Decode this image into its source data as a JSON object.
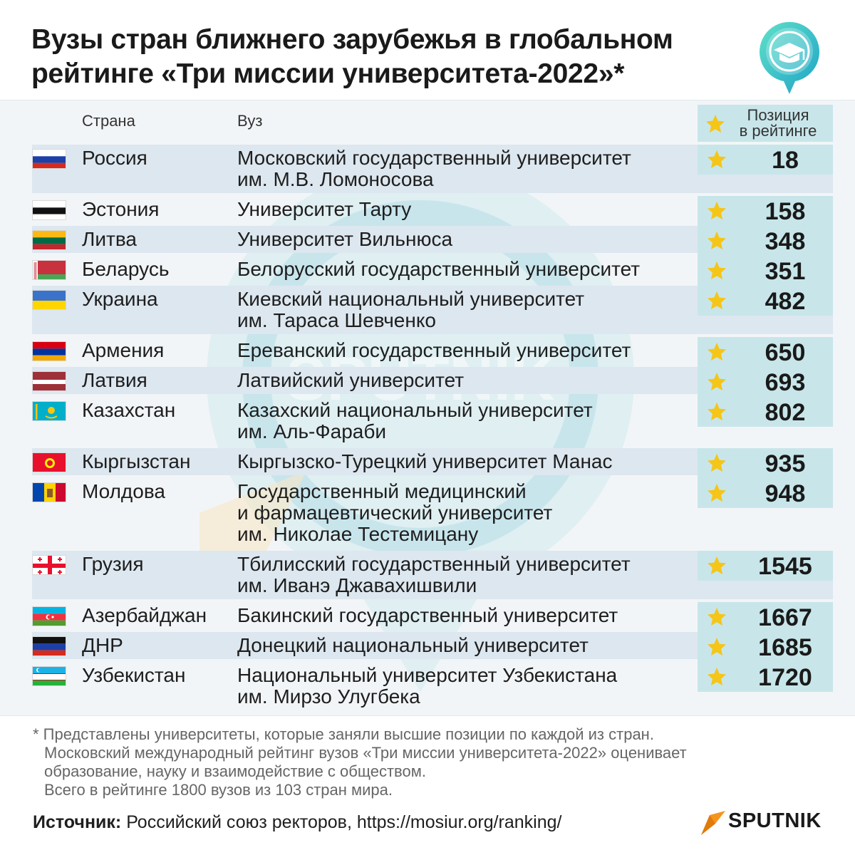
{
  "header": {
    "title_line1": "Вузы стран ближнего зарубежья в глобальном",
    "title_line2": "рейтинге «Три миссии университета-2022»*",
    "icon": "graduation-cap-pin-icon"
  },
  "chart_data": {
    "type": "table",
    "columns": {
      "country": "Страна",
      "university": "Вуз",
      "rank": "Позиция\nв рейтинге"
    },
    "rows": [
      {
        "country": "Россия",
        "flag": "russia-flag-icon",
        "university": [
          "Московский государственный университет",
          "им. М.В. Ломоносова"
        ],
        "rank": 18
      },
      {
        "country": "Эстония",
        "flag": "estonia-flag-icon",
        "university": [
          "Университет Тарту"
        ],
        "rank": 158
      },
      {
        "country": "Литва",
        "flag": "lithuania-flag-icon",
        "university": [
          "Университет Вильнюса"
        ],
        "rank": 348
      },
      {
        "country": "Беларусь",
        "flag": "belarus-flag-icon",
        "university": [
          "Белорусский государственный университет"
        ],
        "rank": 351
      },
      {
        "country": "Украина",
        "flag": "ukraine-flag-icon",
        "university": [
          "Киевский национальный университет",
          "им. Тараса Шевченко"
        ],
        "rank": 482
      },
      {
        "country": "Армения",
        "flag": "armenia-flag-icon",
        "university": [
          "Ереванский государственный университет"
        ],
        "rank": 650
      },
      {
        "country": "Латвия",
        "flag": "latvia-flag-icon",
        "university": [
          "Латвийский университет"
        ],
        "rank": 693
      },
      {
        "country": "Казахстан",
        "flag": "kazakhstan-flag-icon",
        "university": [
          "Казахский национальный университет",
          "им. Аль-Фараби"
        ],
        "rank": 802
      },
      {
        "country": "Кыргызстан",
        "flag": "kyrgyzstan-flag-icon",
        "university": [
          "Кыргызско-Турецкий университет Манас"
        ],
        "rank": 935
      },
      {
        "country": "Молдова",
        "flag": "moldova-flag-icon",
        "university": [
          "Государственный медицинский",
          "и фармацевтический университет",
          "им. Николае Тестемицану"
        ],
        "rank": 948
      },
      {
        "country": "Грузия",
        "flag": "georgia-flag-icon",
        "university": [
          "Тбилисский государственный университет",
          "им. Иванэ Джавахишвили"
        ],
        "rank": 1545
      },
      {
        "country": "Азербайджан",
        "flag": "azerbaijan-flag-icon",
        "university": [
          "Бакинский государственный университет"
        ],
        "rank": 1667
      },
      {
        "country": "ДНР",
        "flag": "dpr-flag-icon",
        "university": [
          "Донецкий национальный университет"
        ],
        "rank": 1685
      },
      {
        "country": "Узбекистан",
        "flag": "uzbekistan-flag-icon",
        "university": [
          "Национальный университет Узбекистана",
          "им. Мирзо Улугбека"
        ],
        "rank": 1720
      }
    ]
  },
  "footnote": {
    "line1": "* Представлены университеты, которые заняли высшие позиции по каждой из стран.",
    "line2": "Московский международный рейтинг вузов «Три миссии университета-2022» оценивает",
    "line3": "образование, науку и взаимодействие с обществом.",
    "line4": "Всего в рейтинге 1800 вузов из 103 стран мира."
  },
  "source": {
    "label": "Источник:",
    "text": " Российский союз ректоров, https://mosiur.org/ranking/"
  },
  "brand": {
    "name": "SPUTNIK",
    "icon": "sputnik-logo-icon"
  },
  "colors": {
    "accent": "#c8e6ea",
    "row_shade": "#dde7ef",
    "panel": "#f2f5f7",
    "star": "#f5c518",
    "brand_orange": "#f7941d"
  }
}
